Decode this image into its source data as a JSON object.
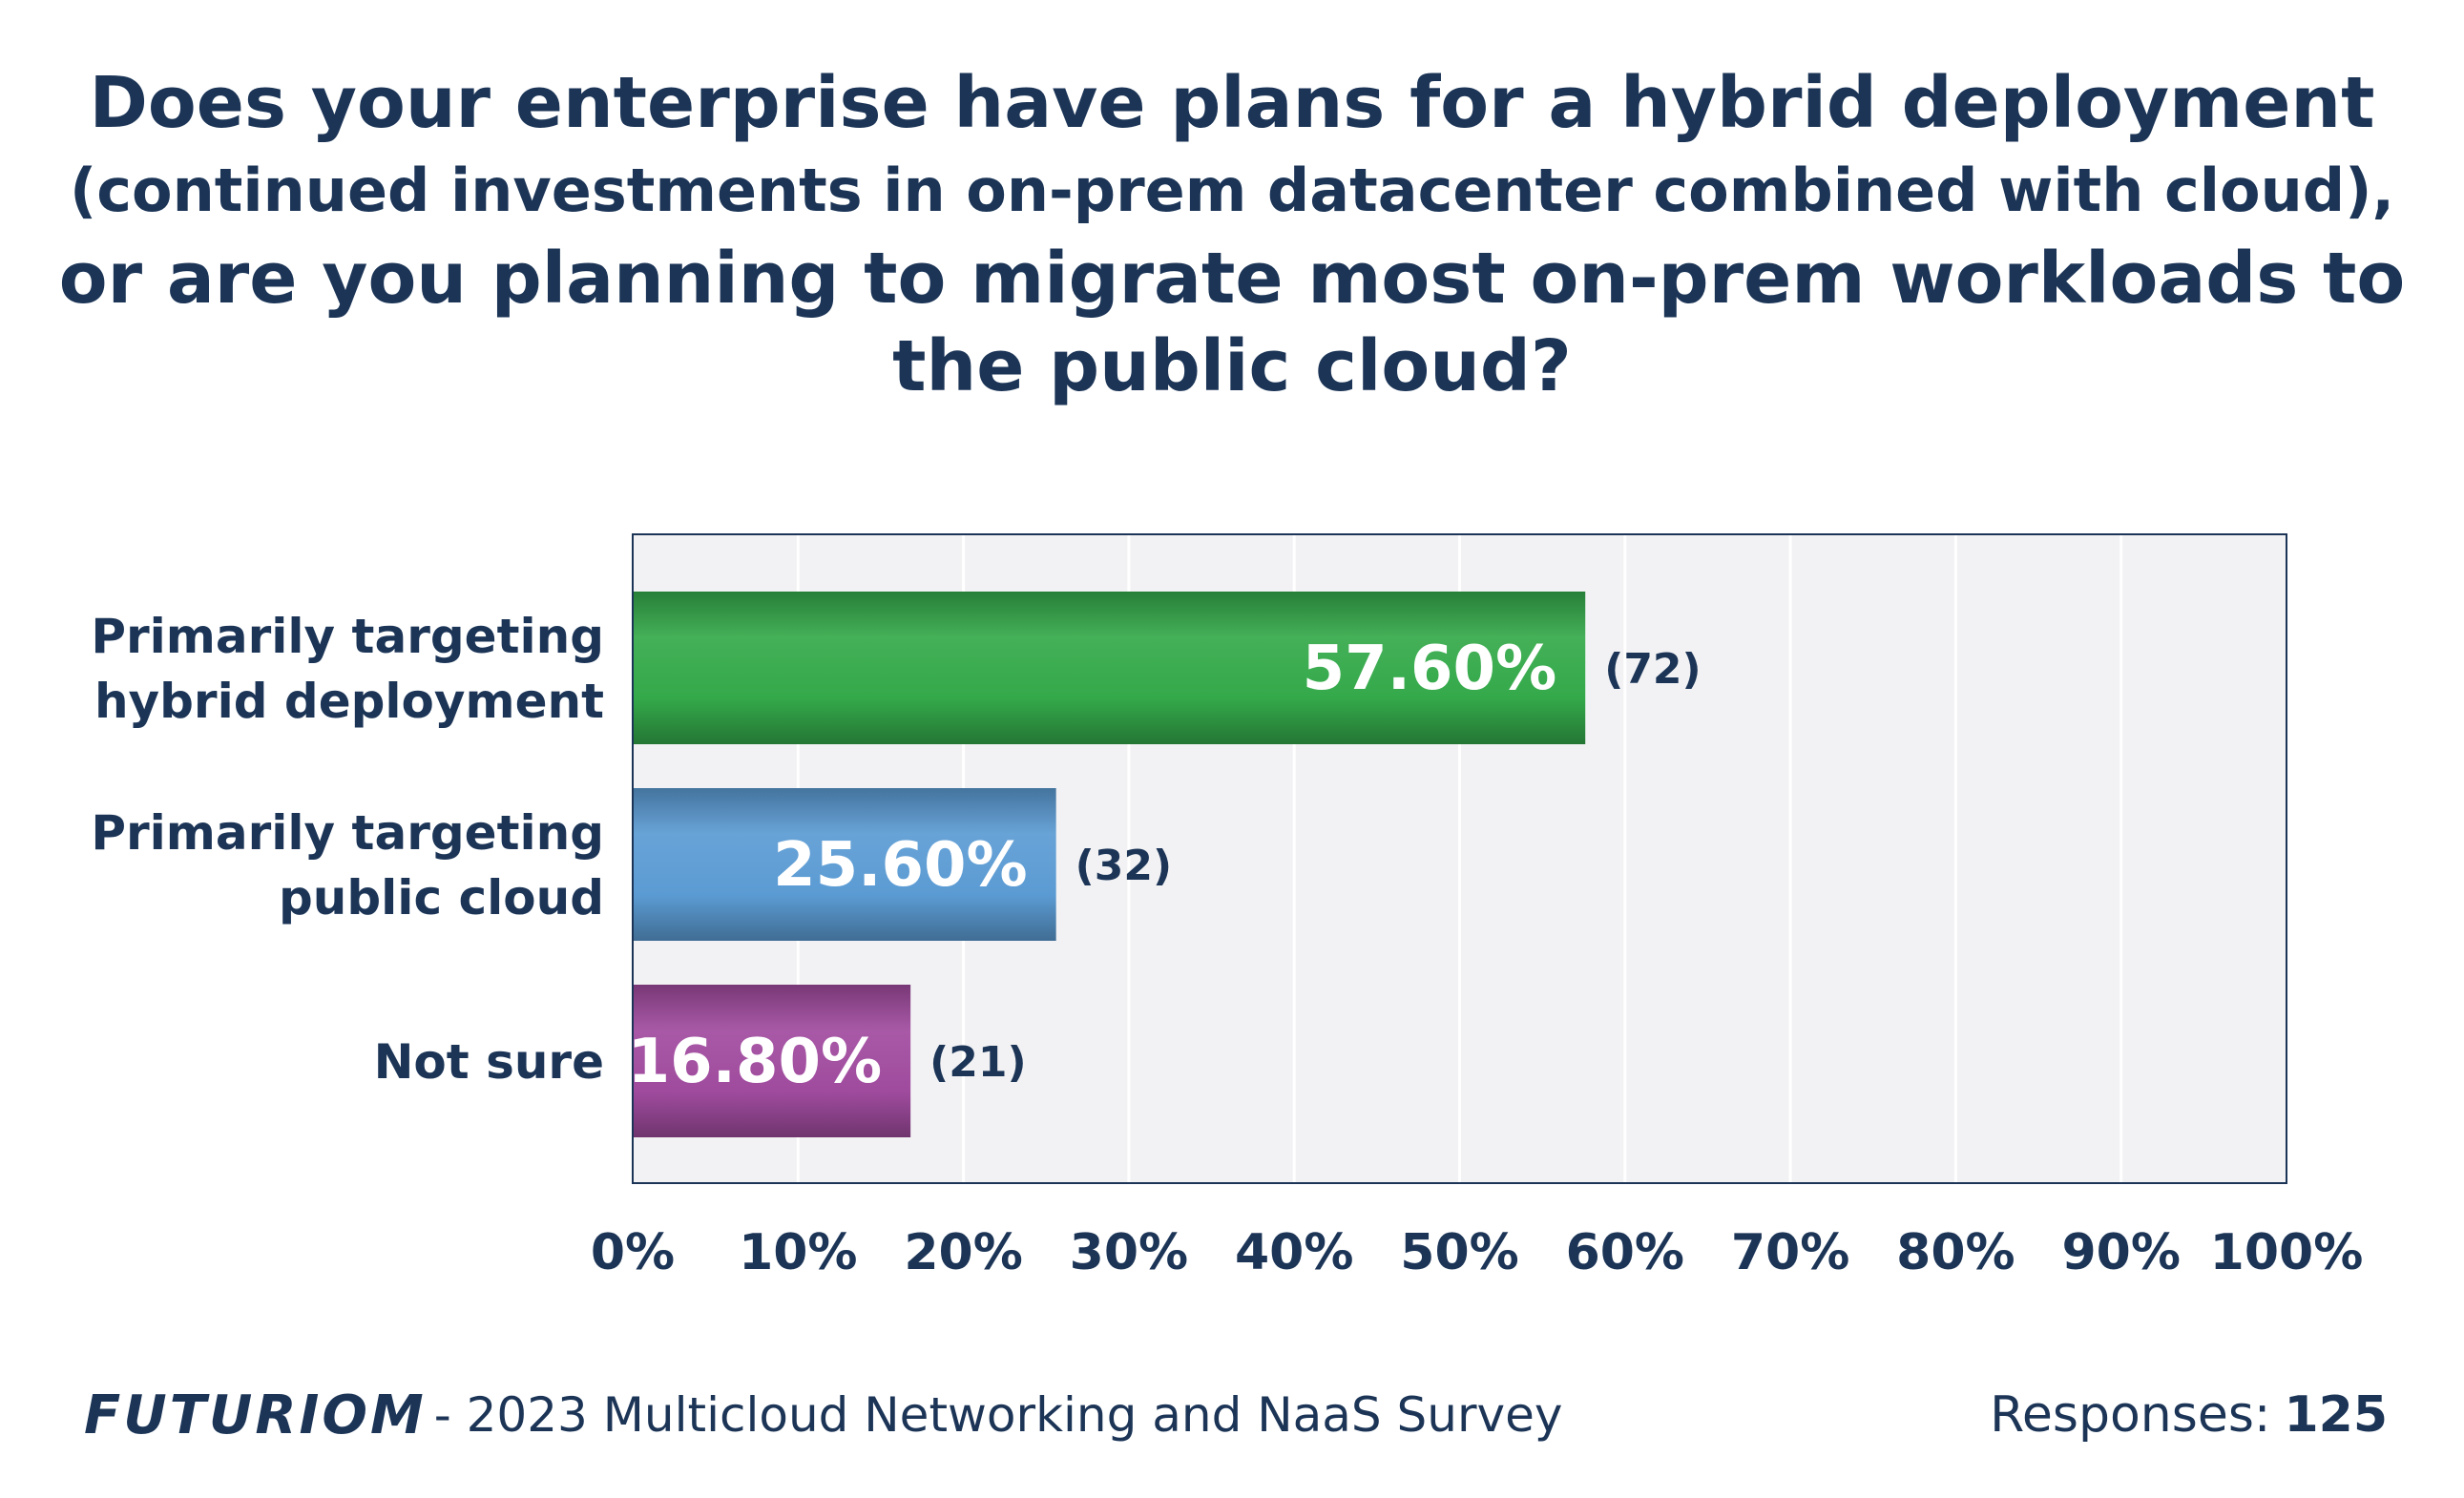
{
  "title": {
    "line1": "Does your enterprise have plans for a hybrid deployment",
    "line2": "(continued investments in on-prem datacenter combined with cloud),",
    "line3": "or are you planning to migrate most on-prem workloads to",
    "line4": "the public cloud?"
  },
  "chart_data": {
    "type": "bar",
    "orientation": "horizontal",
    "title": "Does your enterprise have plans for a hybrid deployment (continued investments in on-prem datacenter combined with cloud), or are you planning to migrate most on-prem workloads to the public cloud?",
    "categories": [
      [
        "Primarily targeting",
        "hybrid deployment"
      ],
      [
        "Primarily targeting",
        "public cloud"
      ],
      [
        "Not sure"
      ]
    ],
    "values": [
      57.6,
      25.6,
      16.8
    ],
    "value_labels": [
      "57.60%",
      "25.60%",
      "16.80%"
    ],
    "counts": [
      "(72)",
      "(32)",
      "(21)"
    ],
    "colors": [
      "#34a94a",
      "#5b9bd3",
      "#a04b9e"
    ],
    "xlim": [
      0,
      100
    ],
    "xticks": [
      "0%",
      "10%",
      "20%",
      "30%",
      "40%",
      "50%",
      "60%",
      "70%",
      "80%",
      "90%",
      "100%"
    ],
    "grid": true,
    "plot_background": "#f2f2f4",
    "frame_color": "#1c3557",
    "text_color": "#1c3557"
  },
  "footer": {
    "brand": "FUTURIOM",
    "survey": "- 2023 Multicloud Networking and NaaS Survey",
    "responses_label": "Responses:",
    "responses_value": "125"
  }
}
